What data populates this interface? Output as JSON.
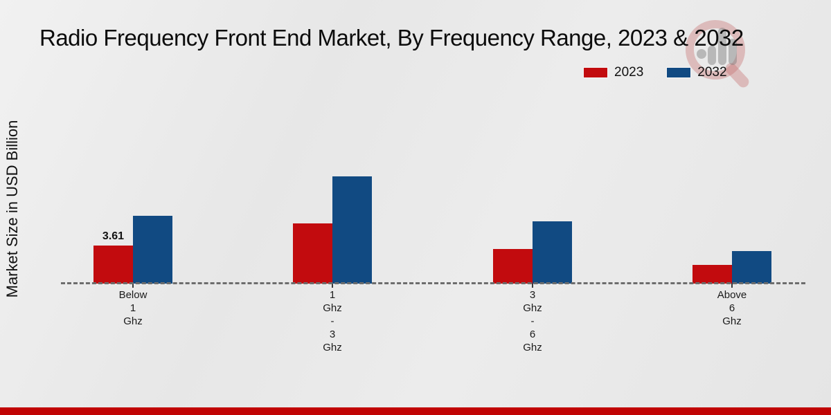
{
  "title": "Radio Frequency Front End Market, By Frequency Range, 2023 & 2032",
  "footer_color": "#c10404",
  "background_color": "#e9e9e9",
  "watermark_icon": "mrfr-magnifier-bars-logo",
  "chart_data": {
    "type": "bar",
    "title": "Radio Frequency Front End Market, By Frequency Range, 2023 & 2032",
    "xlabel": "",
    "ylabel": "Market Size in USD Billion",
    "categories": [
      "Below 1 Ghz",
      "1 Ghz - 3 Ghz",
      "3 Ghz - 6 Ghz",
      "Above 6 Ghz"
    ],
    "category_tick_lines": [
      [
        "Below",
        "1",
        "Ghz"
      ],
      [
        "1",
        "Ghz",
        "-",
        "3",
        "Ghz"
      ],
      [
        "3",
        "Ghz",
        "-",
        "6",
        "Ghz"
      ],
      [
        "Above",
        "6",
        "Ghz"
      ]
    ],
    "series": [
      {
        "name": "2023",
        "color": "#c20b0e",
        "values": [
          3.61,
          5.74,
          3.28,
          1.77
        ]
      },
      {
        "name": "2032",
        "color": "#114a82",
        "values": [
          6.43,
          10.17,
          5.91,
          3.1
        ]
      }
    ],
    "data_labels": [
      {
        "series_index": 0,
        "category_index": 0,
        "text": "3.61"
      }
    ],
    "ylim": [
      0,
      12
    ],
    "grid": false,
    "y_axis_ticks_visible": false,
    "legend_position": "top-right",
    "baseline_style": "dashed",
    "note": "Only the first 2023 bar carries a printed value label (3.61); other values estimated from bar heights."
  }
}
